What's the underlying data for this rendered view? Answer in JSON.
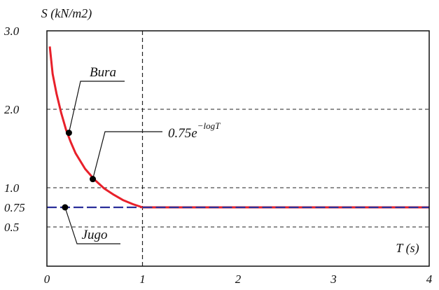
{
  "chart_data": {
    "type": "line",
    "title": "",
    "xlabel": "T (s)",
    "ylabel": "S (kN/m2)",
    "xlim": [
      0,
      4
    ],
    "ylim": [
      0,
      3.0
    ],
    "x_ticks": [
      "0",
      "1",
      "2",
      "3",
      "4"
    ],
    "y_ticks": [
      {
        "value": 3.0,
        "label": "3.0"
      },
      {
        "value": 2.0,
        "label": "2.0"
      },
      {
        "value": 1.0,
        "label": "1.0"
      },
      {
        "value": 0.75,
        "label": "0.75"
      },
      {
        "value": 0.5,
        "label": "0.5"
      }
    ],
    "grid_y_values": [
      2.0,
      1.0,
      0.5
    ],
    "vline_x": 1.0,
    "series": [
      {
        "name": "Bura",
        "color": "#e8202a",
        "formula": "0.75e^-logT",
        "x": [
          0.03,
          0.06,
          0.1,
          0.15,
          0.2,
          0.25,
          0.3,
          0.4,
          0.5,
          0.6,
          0.7,
          0.8,
          0.9,
          1.0,
          1.5,
          2.0,
          2.5,
          3.0,
          3.5,
          4.0
        ],
        "y": [
          2.8,
          2.45,
          2.2,
          1.95,
          1.74,
          1.58,
          1.44,
          1.24,
          1.1,
          0.99,
          0.91,
          0.84,
          0.79,
          0.75,
          0.75,
          0.75,
          0.75,
          0.75,
          0.75,
          0.75
        ]
      },
      {
        "name": "Jugo",
        "color": "#2a2f9a",
        "x": [
          0.0,
          4.0
        ],
        "y": [
          0.75,
          0.75
        ]
      }
    ],
    "markers": [
      {
        "x": 0.23,
        "y": 1.7
      },
      {
        "x": 0.48,
        "y": 1.11
      },
      {
        "x": 0.19,
        "y": 0.75
      }
    ],
    "annotations": [
      {
        "text": "Bura"
      },
      {
        "text": "Jugo"
      },
      {
        "text_base": "0.75e",
        "text_sup": "−logT"
      }
    ]
  }
}
